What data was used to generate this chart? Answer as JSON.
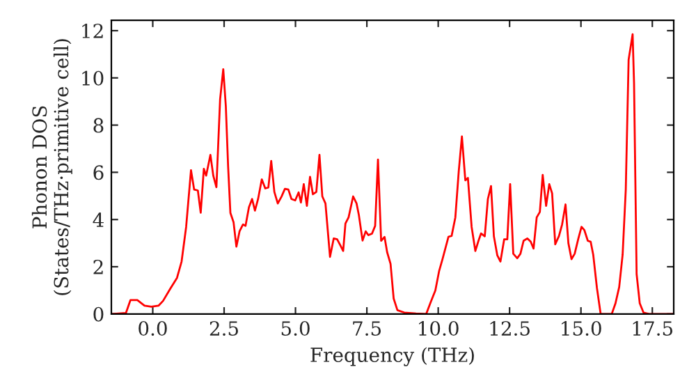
{
  "chart_data": {
    "type": "line",
    "xlabel": "Frequency (THz)",
    "ylabel": "Phonon DOS\n(States/THz·primitive cell)",
    "xlim": [
      -1.45,
      18.25
    ],
    "ylim": [
      0,
      12.44
    ],
    "xticks": [
      {
        "value": 0,
        "label": "0.0"
      },
      {
        "value": 2.5,
        "label": "2.5"
      },
      {
        "value": 5,
        "label": "5.0"
      },
      {
        "value": 7.5,
        "label": "7.5"
      },
      {
        "value": 10,
        "label": "10.0"
      },
      {
        "value": 12.5,
        "label": "12.5"
      },
      {
        "value": 15,
        "label": "15.0"
      },
      {
        "value": 17.5,
        "label": "17.5"
      }
    ],
    "yticks": [
      0,
      2,
      4,
      6,
      8,
      10,
      12
    ],
    "grid": false,
    "marker": "none",
    "line_style": "solid",
    "series": [
      {
        "color": "#ff0000",
        "x": [
          -1.43,
          -0.94,
          -0.78,
          -0.54,
          -0.29,
          -0.05,
          0.2,
          0.36,
          0.6,
          0.85,
          1.01,
          1.17,
          1.34,
          1.45,
          1.58,
          1.68,
          1.79,
          1.87,
          2.02,
          2.12,
          2.23,
          2.36,
          2.47,
          2.56,
          2.64,
          2.72,
          2.83,
          2.93,
          3.04,
          3.16,
          3.25,
          3.37,
          3.48,
          3.58,
          3.69,
          3.82,
          3.94,
          4.05,
          4.15,
          4.26,
          4.38,
          4.51,
          4.63,
          4.75,
          4.86,
          4.99,
          5.11,
          5.19,
          5.29,
          5.4,
          5.51,
          5.61,
          5.73,
          5.84,
          5.94,
          6.05,
          6.21,
          6.34,
          6.46,
          6.57,
          6.67,
          6.75,
          6.86,
          7.02,
          7.14,
          7.22,
          7.35,
          7.46,
          7.55,
          7.68,
          7.79,
          7.89,
          8.0,
          8.12,
          8.21,
          8.33,
          8.44,
          8.57,
          8.81,
          9.22,
          9.58,
          9.74,
          9.9,
          10.03,
          10.15,
          10.28,
          10.36,
          10.47,
          10.6,
          10.72,
          10.83,
          10.95,
          11.04,
          11.17,
          11.3,
          11.41,
          11.5,
          11.63,
          11.74,
          11.85,
          11.95,
          12.07,
          12.18,
          12.31,
          12.42,
          12.52,
          12.63,
          12.77,
          12.88,
          12.99,
          13.12,
          13.24,
          13.34,
          13.45,
          13.56,
          13.66,
          13.78,
          13.89,
          13.99,
          14.1,
          14.23,
          14.34,
          14.46,
          14.56,
          14.67,
          14.78,
          14.91,
          15.02,
          15.12,
          15.24,
          15.34,
          15.43,
          15.56,
          15.69,
          16.08,
          16.21,
          16.34,
          16.46,
          16.57,
          16.67,
          16.81,
          16.86,
          16.95,
          17.06,
          17.19,
          17.39,
          18.24
        ],
        "values": [
          0,
          0.04,
          0.59,
          0.59,
          0.35,
          0.31,
          0.35,
          0.55,
          1.04,
          1.53,
          2.22,
          3.69,
          6.09,
          5.27,
          5.23,
          4.29,
          6.15,
          5.86,
          6.74,
          5.86,
          5.37,
          9.1,
          10.37,
          8.8,
          6.25,
          4.28,
          3.89,
          2.85,
          3.5,
          3.79,
          3.73,
          4.52,
          4.87,
          4.38,
          4.87,
          5.7,
          5.32,
          5.36,
          6.48,
          5.17,
          4.68,
          4.97,
          5.3,
          5.27,
          4.87,
          4.81,
          5.15,
          4.72,
          5.5,
          4.58,
          5.81,
          5.07,
          5.17,
          6.74,
          4.98,
          4.68,
          2.42,
          3.2,
          3.16,
          2.91,
          2.67,
          3.83,
          4.09,
          4.98,
          4.68,
          4.19,
          3.11,
          3.5,
          3.34,
          3.4,
          3.73,
          6.54,
          3.1,
          3.26,
          2.62,
          2.12,
          0.65,
          0.16,
          0.06,
          0.02,
          0,
          0.51,
          1.0,
          1.81,
          2.32,
          2.91,
          3.27,
          3.31,
          4.09,
          6.05,
          7.52,
          5.66,
          5.76,
          3.69,
          2.67,
          3.1,
          3.41,
          3.29,
          4.87,
          5.42,
          3.29,
          2.48,
          2.22,
          3.16,
          3.16,
          5.5,
          2.55,
          2.36,
          2.55,
          3.1,
          3.2,
          3.06,
          2.77,
          4.09,
          4.32,
          5.89,
          4.58,
          5.5,
          5.11,
          2.95,
          3.3,
          3.79,
          4.64,
          3.0,
          2.32,
          2.55,
          3.2,
          3.69,
          3.55,
          3.1,
          3.06,
          2.51,
          1.1,
          0,
          0,
          0.45,
          1.14,
          2.51,
          5.26,
          10.77,
          11.85,
          9.78,
          1.69,
          0.45,
          0.06,
          0,
          0
        ]
      }
    ]
  }
}
